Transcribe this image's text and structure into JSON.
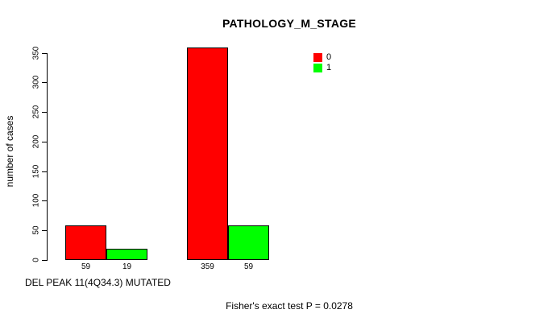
{
  "chart_data": {
    "type": "bar",
    "title": "PATHOLOGY_M_STAGE",
    "xlabel": "DEL PEAK 11(4Q34.3) MUTATED",
    "ylabel": "number of cases",
    "ylim": [
      0,
      350
    ],
    "yticks": [
      0,
      50,
      100,
      150,
      200,
      250,
      300,
      350
    ],
    "grid": false,
    "legend_position": "top-right",
    "series": [
      {
        "name": "0",
        "color": "#ff0000",
        "values": [
          59,
          359
        ]
      },
      {
        "name": "1",
        "color": "#00ff00",
        "values": [
          19,
          59
        ]
      }
    ],
    "bar_value_labels": [
      "59",
      "19",
      "359",
      "59"
    ],
    "annotation": "Fisher's exact test P = 0.0278"
  }
}
